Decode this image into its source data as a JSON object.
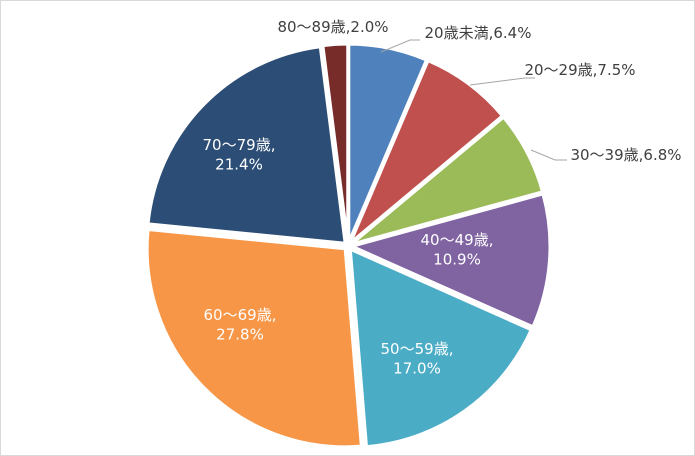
{
  "chart_data": {
    "type": "pie",
    "title": "",
    "slices": [
      {
        "name": "20歳未満",
        "value": 6.4,
        "label": "20歳未満,6.4%",
        "color": "#4f81bd"
      },
      {
        "name": "20～29歳",
        "value": 7.5,
        "label": "20～29歳,7.5%",
        "color": "#c0504d"
      },
      {
        "name": "30～39歳",
        "value": 6.8,
        "label": "30～39歳,6.8%",
        "color": "#9bbb59"
      },
      {
        "name": "40～49歳",
        "value": 10.9,
        "label": [
          "40～49歳,",
          "10.9%"
        ],
        "color": "#8064a2"
      },
      {
        "name": "50～59歳",
        "value": 17.0,
        "label": [
          "50～59歳,",
          "17.0%"
        ],
        "color": "#4bacc6"
      },
      {
        "name": "60～69歳",
        "value": 27.8,
        "label": [
          "60～69歳,",
          "27.8%"
        ],
        "color": "#f79646"
      },
      {
        "name": "70～79歳",
        "value": 21.4,
        "label": [
          "70～79歳,",
          "21.4%"
        ],
        "color": "#2c4d75"
      },
      {
        "name": "80～89歳",
        "value": 2.0,
        "label": "80～89歳,2.0%",
        "color": "#772c2a"
      }
    ],
    "start_angle": "12 o'clock",
    "direction": "clockwise",
    "legend": "none",
    "label_position": "inside for large slices, outside with leader lines for small slices"
  }
}
